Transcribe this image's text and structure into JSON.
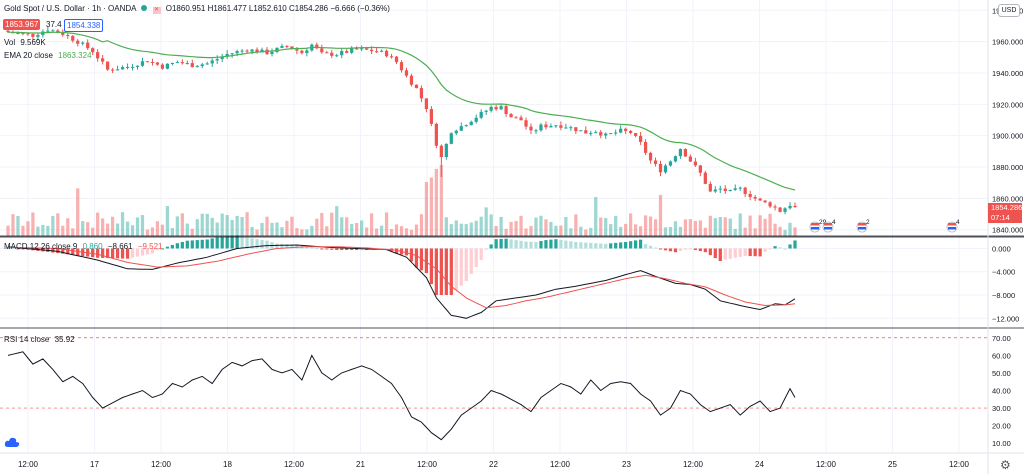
{
  "header": {
    "symbol": "Gold Spot / U.S. Dollar · 1h · OANDA",
    "ohlc": "O1860.951 H1861.477 L1852.610 C1854.286 −6.666 (−0.36%)",
    "bid": "1853.967",
    "spread": "37.4",
    "ask": "1854.338",
    "vol_label": "Vol",
    "vol_value": "9.569K",
    "ema_label": "EMA 20 close",
    "ema_value": "1863.324",
    "macd_label": "MACD 12 26 close 9",
    "macd_values": [
      "0.860",
      "−8.661",
      "−9.521"
    ],
    "rsi_label": "RSI 14 close",
    "rsi_value": "35.92",
    "currency": "USD",
    "price_tag": "1854.286",
    "countdown": "07:14",
    "event_badges": [
      "29",
      "4",
      "2",
      "4"
    ]
  },
  "colors": {
    "up": "#26a69a",
    "down": "#ef5350",
    "ema": "#4caf50",
    "macd": "#131722",
    "signal": "#ef5350",
    "rsi": "#131722"
  },
  "chart_data": [
    {
      "type": "candlestick",
      "title": "Gold Spot / U.S. Dollar · 1h · OANDA",
      "x_ticks": [
        "12:00",
        "17",
        "12:00",
        "18",
        "12:00",
        "21",
        "12:00",
        "22",
        "12:00",
        "23",
        "12:00",
        "24",
        "12:00",
        "25",
        "12:00"
      ],
      "y_ticks": [
        1980,
        1960,
        1940,
        1920,
        1900,
        1880,
        1860,
        1840
      ],
      "ylim": [
        1836,
        1984
      ],
      "keypoints_close": [
        [
          0,
          1966
        ],
        [
          5,
          1964
        ],
        [
          8,
          1968
        ],
        [
          11,
          1965
        ],
        [
          14,
          1960
        ],
        [
          17,
          1954
        ],
        [
          20,
          1942
        ],
        [
          24,
          1944
        ],
        [
          28,
          1948
        ],
        [
          31,
          1944
        ],
        [
          34,
          1947
        ],
        [
          37,
          1945
        ],
        [
          40,
          1946
        ],
        [
          44,
          1952
        ],
        [
          48,
          1955
        ],
        [
          52,
          1953
        ],
        [
          56,
          1957
        ],
        [
          59,
          1953
        ],
        [
          61,
          1958
        ],
        [
          63,
          1952
        ],
        [
          66,
          1952
        ],
        [
          70,
          1955
        ],
        [
          74,
          1954
        ],
        [
          76,
          1952
        ],
        [
          78,
          1947
        ],
        [
          80,
          1938
        ],
        [
          82,
          1930
        ],
        [
          84,
          1918
        ],
        [
          86,
          1895
        ],
        [
          87,
          1886
        ],
        [
          89,
          1903
        ],
        [
          91,
          1906
        ],
        [
          94,
          1912
        ],
        [
          97,
          1918
        ],
        [
          99,
          1918
        ],
        [
          101,
          1912
        ],
        [
          103,
          1910
        ],
        [
          105,
          1902
        ],
        [
          107,
          1906
        ],
        [
          110,
          1907
        ],
        [
          112,
          1906
        ],
        [
          114,
          1904
        ],
        [
          116,
          1902
        ],
        [
          118,
          1903
        ],
        [
          120,
          1900
        ],
        [
          123,
          1903
        ],
        [
          125,
          1902
        ],
        [
          127,
          1895
        ],
        [
          129,
          1884
        ],
        [
          131,
          1878
        ],
        [
          133,
          1884
        ],
        [
          135,
          1892
        ],
        [
          137,
          1884
        ],
        [
          139,
          1876
        ],
        [
          141,
          1864
        ],
        [
          143,
          1866
        ],
        [
          145,
          1864
        ],
        [
          147,
          1866
        ],
        [
          149,
          1862
        ],
        [
          151,
          1858
        ],
        [
          153,
          1856
        ],
        [
          155,
          1852
        ],
        [
          157,
          1856
        ],
        [
          158,
          1854
        ]
      ],
      "ema_label": "EMA 20 close",
      "ema_last": 1863.324
    },
    {
      "type": "bar",
      "title": "Vol",
      "last": "9.569K"
    },
    {
      "type": "histogram+line",
      "title": "MACD 12 26 close 9",
      "y_ticks": [
        0,
        -4,
        -8,
        -12
      ],
      "ylim": [
        -13.5,
        1.8
      ],
      "macd_keypoints": [
        [
          0,
          0.3
        ],
        [
          10,
          -0.5
        ],
        [
          18,
          -2.0
        ],
        [
          24,
          -3.5
        ],
        [
          29,
          -3.6
        ],
        [
          34,
          -2.5
        ],
        [
          40,
          -1.5
        ],
        [
          46,
          0.0
        ],
        [
          52,
          0.5
        ],
        [
          58,
          0.6
        ],
        [
          64,
          0.2
        ],
        [
          70,
          0.0
        ],
        [
          76,
          -0.2
        ],
        [
          80,
          -1.5
        ],
        [
          84,
          -5.0
        ],
        [
          86,
          -8.5
        ],
        [
          89,
          -11.5
        ],
        [
          92,
          -12.0
        ],
        [
          95,
          -11.0
        ],
        [
          98,
          -9.0
        ],
        [
          102,
          -8.5
        ],
        [
          106,
          -8.0
        ],
        [
          110,
          -7.0
        ],
        [
          114,
          -6.5
        ],
        [
          120,
          -5.5
        ],
        [
          124,
          -4.5
        ],
        [
          127,
          -3.8
        ],
        [
          130,
          -4.8
        ],
        [
          134,
          -6.0
        ],
        [
          137,
          -6.2
        ],
        [
          140,
          -7.0
        ],
        [
          143,
          -9.0
        ],
        [
          148,
          -10.0
        ],
        [
          151,
          -10.5
        ],
        [
          154,
          -9.5
        ],
        [
          156,
          -9.7
        ],
        [
          158,
          -8.66
        ]
      ],
      "signal_keypoints": [
        [
          0,
          0.2
        ],
        [
          10,
          0.0
        ],
        [
          18,
          -1.0
        ],
        [
          24,
          -2.4
        ],
        [
          30,
          -3.2
        ],
        [
          36,
          -3.0
        ],
        [
          42,
          -2.2
        ],
        [
          48,
          -1.0
        ],
        [
          54,
          0.0
        ],
        [
          60,
          0.3
        ],
        [
          66,
          0.3
        ],
        [
          72,
          0.1
        ],
        [
          78,
          -0.3
        ],
        [
          82,
          -1.2
        ],
        [
          86,
          -3.5
        ],
        [
          89,
          -6.5
        ],
        [
          92,
          -8.5
        ],
        [
          96,
          -10.2
        ],
        [
          100,
          -9.8
        ],
        [
          104,
          -9.0
        ],
        [
          108,
          -8.4
        ],
        [
          112,
          -7.6
        ],
        [
          116,
          -6.8
        ],
        [
          120,
          -6.0
        ],
        [
          124,
          -5.2
        ],
        [
          128,
          -4.6
        ],
        [
          132,
          -5.2
        ],
        [
          136,
          -6.0
        ],
        [
          140,
          -6.6
        ],
        [
          144,
          -8.0
        ],
        [
          148,
          -9.2
        ],
        [
          152,
          -9.8
        ],
        [
          156,
          -9.7
        ],
        [
          158,
          -9.52
        ]
      ]
    },
    {
      "type": "line",
      "title": "RSI 14 close",
      "y_ticks": [
        70,
        60,
        50,
        40,
        30,
        20,
        10
      ],
      "ylim": [
        5,
        75
      ],
      "levels": [
        70,
        30
      ],
      "keypoints": [
        [
          0,
          60
        ],
        [
          3,
          62
        ],
        [
          5,
          55
        ],
        [
          7,
          58
        ],
        [
          9,
          52
        ],
        [
          11,
          45
        ],
        [
          13,
          48
        ],
        [
          15,
          44
        ],
        [
          17,
          36
        ],
        [
          19,
          30
        ],
        [
          21,
          33
        ],
        [
          23,
          36
        ],
        [
          25,
          38
        ],
        [
          27,
          40
        ],
        [
          29,
          36
        ],
        [
          31,
          38
        ],
        [
          33,
          44
        ],
        [
          35,
          42
        ],
        [
          37,
          46
        ],
        [
          39,
          48
        ],
        [
          41,
          44
        ],
        [
          43,
          52
        ],
        [
          45,
          56
        ],
        [
          47,
          54
        ],
        [
          49,
          57
        ],
        [
          51,
          58
        ],
        [
          53,
          52
        ],
        [
          55,
          50
        ],
        [
          57,
          52
        ],
        [
          59,
          46
        ],
        [
          61,
          60
        ],
        [
          63,
          50
        ],
        [
          65,
          46
        ],
        [
          67,
          50
        ],
        [
          69,
          52
        ],
        [
          71,
          54
        ],
        [
          73,
          52
        ],
        [
          75,
          48
        ],
        [
          77,
          44
        ],
        [
          79,
          36
        ],
        [
          81,
          25
        ],
        [
          83,
          22
        ],
        [
          85,
          16
        ],
        [
          87,
          12
        ],
        [
          89,
          18
        ],
        [
          91,
          26
        ],
        [
          93,
          30
        ],
        [
          95,
          34
        ],
        [
          97,
          40
        ],
        [
          99,
          38
        ],
        [
          101,
          35
        ],
        [
          103,
          32
        ],
        [
          105,
          28
        ],
        [
          107,
          36
        ],
        [
          109,
          40
        ],
        [
          111,
          44
        ],
        [
          113,
          42
        ],
        [
          115,
          38
        ],
        [
          117,
          46
        ],
        [
          119,
          40
        ],
        [
          121,
          44
        ],
        [
          123,
          45
        ],
        [
          125,
          44
        ],
        [
          127,
          38
        ],
        [
          129,
          34
        ],
        [
          131,
          26
        ],
        [
          133,
          30
        ],
        [
          135,
          40
        ],
        [
          137,
          38
        ],
        [
          139,
          32
        ],
        [
          141,
          28
        ],
        [
          143,
          30
        ],
        [
          145,
          32
        ],
        [
          147,
          26
        ],
        [
          149,
          31
        ],
        [
          151,
          34
        ],
        [
          153,
          28
        ],
        [
          155,
          30
        ],
        [
          157,
          41
        ],
        [
          158,
          36
        ]
      ]
    }
  ]
}
